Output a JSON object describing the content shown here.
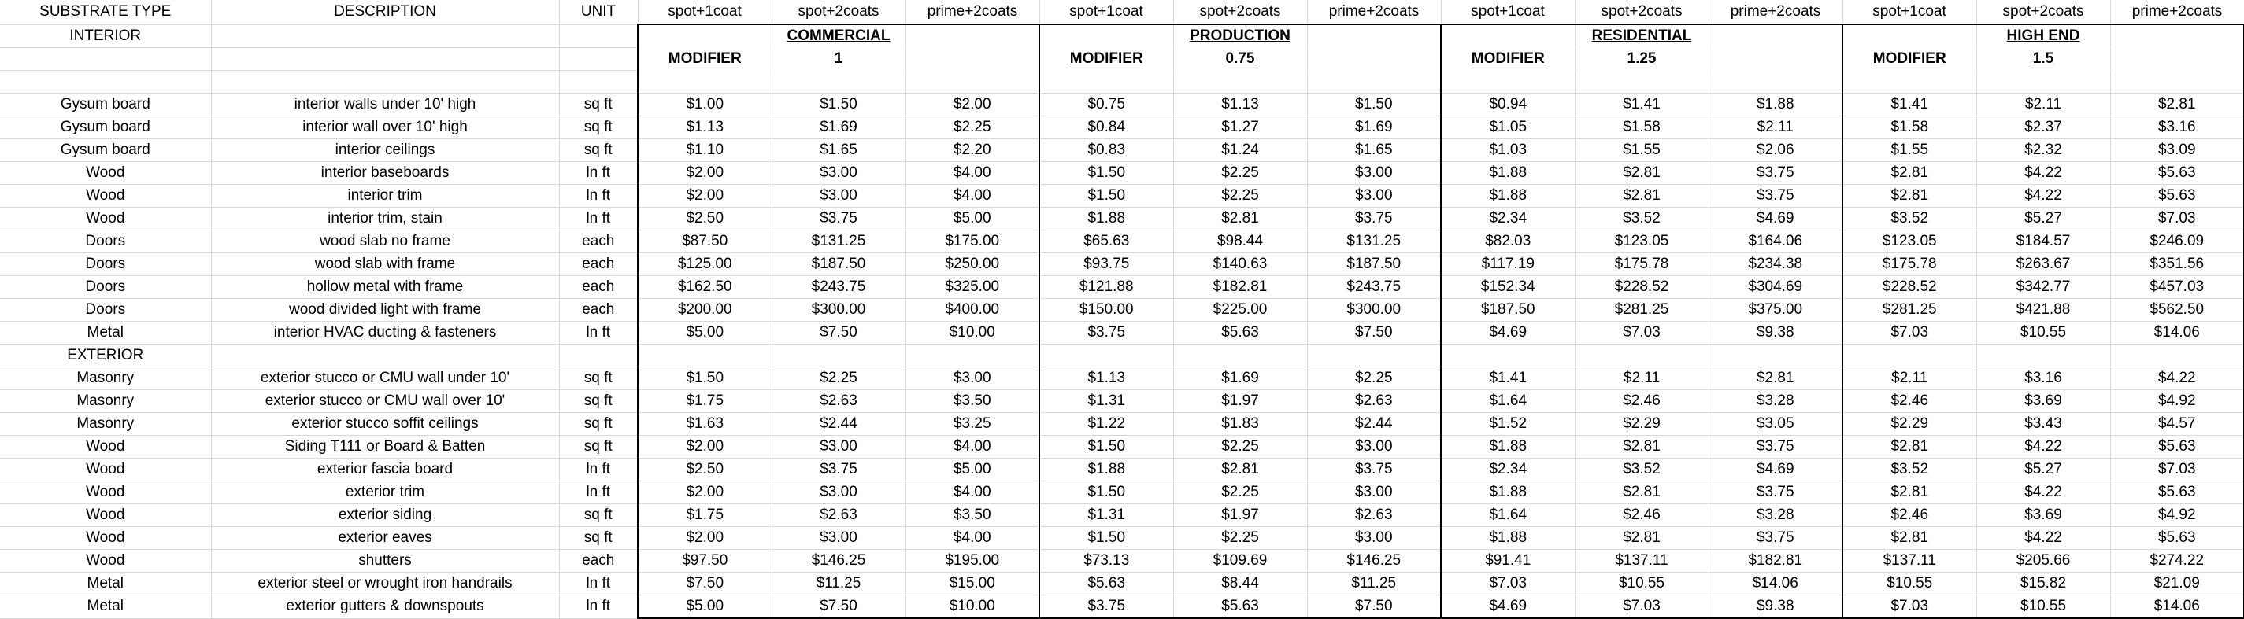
{
  "columns": [
    "SUBSTRATE TYPE",
    "DESCRIPTION",
    "UNIT",
    "spot+1coat",
    "spot+2coats",
    "prime+2coats",
    "spot+1coat",
    "spot+2coats",
    "prime+2coats",
    "spot+1coat",
    "spot+2coats",
    "prime+2coats",
    "spot+1coat",
    "spot+2coats",
    "prime+2coats"
  ],
  "groups": [
    {
      "name": "COMMERCIAL",
      "modifier_label": "MODIFIER",
      "modifier_value": "1"
    },
    {
      "name": "PRODUCTION",
      "modifier_label": "MODIFIER",
      "modifier_value": "0.75"
    },
    {
      "name": "RESIDENTIAL",
      "modifier_label": "MODIFIER",
      "modifier_value": "1.25"
    },
    {
      "name": "HIGH END",
      "modifier_label": "MODIFIER",
      "modifier_value": "1.5"
    }
  ],
  "sections": {
    "interior": "INTERIOR",
    "exterior": "EXTERIOR"
  },
  "interior_rows": [
    {
      "substrate": "Gysum board",
      "description": "interior walls under 10' high",
      "unit": "sq ft",
      "prices": [
        "$1.00",
        "$1.50",
        "$2.00",
        "$0.75",
        "$1.13",
        "$1.50",
        "$0.94",
        "$1.41",
        "$1.88",
        "$1.41",
        "$2.11",
        "$2.81"
      ]
    },
    {
      "substrate": "Gysum board",
      "description": "interior wall over 10' high",
      "unit": "sq ft",
      "prices": [
        "$1.13",
        "$1.69",
        "$2.25",
        "$0.84",
        "$1.27",
        "$1.69",
        "$1.05",
        "$1.58",
        "$2.11",
        "$1.58",
        "$2.37",
        "$3.16"
      ]
    },
    {
      "substrate": "Gysum board",
      "description": "interior ceilings",
      "unit": "sq ft",
      "prices": [
        "$1.10",
        "$1.65",
        "$2.20",
        "$0.83",
        "$1.24",
        "$1.65",
        "$1.03",
        "$1.55",
        "$2.06",
        "$1.55",
        "$2.32",
        "$3.09"
      ]
    },
    {
      "substrate": "Wood",
      "description": "interior baseboards",
      "unit": "ln ft",
      "prices": [
        "$2.00",
        "$3.00",
        "$4.00",
        "$1.50",
        "$2.25",
        "$3.00",
        "$1.88",
        "$2.81",
        "$3.75",
        "$2.81",
        "$4.22",
        "$5.63"
      ]
    },
    {
      "substrate": "Wood",
      "description": "interior trim",
      "unit": "ln ft",
      "prices": [
        "$2.00",
        "$3.00",
        "$4.00",
        "$1.50",
        "$2.25",
        "$3.00",
        "$1.88",
        "$2.81",
        "$3.75",
        "$2.81",
        "$4.22",
        "$5.63"
      ]
    },
    {
      "substrate": "Wood",
      "description": "interior trim, stain",
      "unit": "ln ft",
      "prices": [
        "$2.50",
        "$3.75",
        "$5.00",
        "$1.88",
        "$2.81",
        "$3.75",
        "$2.34",
        "$3.52",
        "$4.69",
        "$3.52",
        "$5.27",
        "$7.03"
      ]
    },
    {
      "substrate": "Doors",
      "description": "wood slab no frame",
      "unit": "each",
      "prices": [
        "$87.50",
        "$131.25",
        "$175.00",
        "$65.63",
        "$98.44",
        "$131.25",
        "$82.03",
        "$123.05",
        "$164.06",
        "$123.05",
        "$184.57",
        "$246.09"
      ]
    },
    {
      "substrate": "Doors",
      "description": "wood slab with frame",
      "unit": "each",
      "prices": [
        "$125.00",
        "$187.50",
        "$250.00",
        "$93.75",
        "$140.63",
        "$187.50",
        "$117.19",
        "$175.78",
        "$234.38",
        "$175.78",
        "$263.67",
        "$351.56"
      ]
    },
    {
      "substrate": "Doors",
      "description": "hollow metal with frame",
      "unit": "each",
      "prices": [
        "$162.50",
        "$243.75",
        "$325.00",
        "$121.88",
        "$182.81",
        "$243.75",
        "$152.34",
        "$228.52",
        "$304.69",
        "$228.52",
        "$342.77",
        "$457.03"
      ]
    },
    {
      "substrate": "Doors",
      "description": "wood divided light with frame",
      "unit": "each",
      "prices": [
        "$200.00",
        "$300.00",
        "$400.00",
        "$150.00",
        "$225.00",
        "$300.00",
        "$187.50",
        "$281.25",
        "$375.00",
        "$281.25",
        "$421.88",
        "$562.50"
      ]
    },
    {
      "substrate": "Metal",
      "description": "interior HVAC ducting & fasteners",
      "unit": "ln ft",
      "prices": [
        "$5.00",
        "$7.50",
        "$10.00",
        "$3.75",
        "$5.63",
        "$7.50",
        "$4.69",
        "$7.03",
        "$9.38",
        "$7.03",
        "$10.55",
        "$14.06"
      ]
    }
  ],
  "exterior_rows": [
    {
      "substrate": "Masonry",
      "description": "exterior stucco or CMU wall under 10'",
      "unit": "sq ft",
      "prices": [
        "$1.50",
        "$2.25",
        "$3.00",
        "$1.13",
        "$1.69",
        "$2.25",
        "$1.41",
        "$2.11",
        "$2.81",
        "$2.11",
        "$3.16",
        "$4.22"
      ]
    },
    {
      "substrate": "Masonry",
      "description": "exterior stucco or CMU wall over 10'",
      "unit": "sq ft",
      "prices": [
        "$1.75",
        "$2.63",
        "$3.50",
        "$1.31",
        "$1.97",
        "$2.63",
        "$1.64",
        "$2.46",
        "$3.28",
        "$2.46",
        "$3.69",
        "$4.92"
      ]
    },
    {
      "substrate": "Masonry",
      "description": "exterior stucco soffit ceilings",
      "unit": "sq ft",
      "prices": [
        "$1.63",
        "$2.44",
        "$3.25",
        "$1.22",
        "$1.83",
        "$2.44",
        "$1.52",
        "$2.29",
        "$3.05",
        "$2.29",
        "$3.43",
        "$4.57"
      ]
    },
    {
      "substrate": "Wood",
      "description": "Siding T111 or Board & Batten",
      "unit": "sq ft",
      "prices": [
        "$2.00",
        "$3.00",
        "$4.00",
        "$1.50",
        "$2.25",
        "$3.00",
        "$1.88",
        "$2.81",
        "$3.75",
        "$2.81",
        "$4.22",
        "$5.63"
      ]
    },
    {
      "substrate": "Wood",
      "description": "exterior fascia board",
      "unit": "ln ft",
      "prices": [
        "$2.50",
        "$3.75",
        "$5.00",
        "$1.88",
        "$2.81",
        "$3.75",
        "$2.34",
        "$3.52",
        "$4.69",
        "$3.52",
        "$5.27",
        "$7.03"
      ]
    },
    {
      "substrate": "Wood",
      "description": "exterior trim",
      "unit": "ln ft",
      "prices": [
        "$2.00",
        "$3.00",
        "$4.00",
        "$1.50",
        "$2.25",
        "$3.00",
        "$1.88",
        "$2.81",
        "$3.75",
        "$2.81",
        "$4.22",
        "$5.63"
      ]
    },
    {
      "substrate": "Wood",
      "description": "exterior siding",
      "unit": "sq ft",
      "prices": [
        "$1.75",
        "$2.63",
        "$3.50",
        "$1.31",
        "$1.97",
        "$2.63",
        "$1.64",
        "$2.46",
        "$3.28",
        "$2.46",
        "$3.69",
        "$4.92"
      ]
    },
    {
      "substrate": "Wood",
      "description": "exterior eaves",
      "unit": "sq ft",
      "prices": [
        "$2.00",
        "$3.00",
        "$4.00",
        "$1.50",
        "$2.25",
        "$3.00",
        "$1.88",
        "$2.81",
        "$3.75",
        "$2.81",
        "$4.22",
        "$5.63"
      ]
    },
    {
      "substrate": "Wood",
      "description": "shutters",
      "unit": "each",
      "prices": [
        "$97.50",
        "$146.25",
        "$195.00",
        "$73.13",
        "$109.69",
        "$146.25",
        "$91.41",
        "$137.11",
        "$182.81",
        "$137.11",
        "$205.66",
        "$274.22"
      ]
    },
    {
      "substrate": "Metal",
      "description": "exterior steel or wrought iron handrails",
      "unit": "ln ft",
      "prices": [
        "$7.50",
        "$11.25",
        "$15.00",
        "$5.63",
        "$8.44",
        "$11.25",
        "$7.03",
        "$10.55",
        "$14.06",
        "$10.55",
        "$15.82",
        "$21.09"
      ]
    },
    {
      "substrate": "Metal",
      "description": "exterior gutters & downspouts",
      "unit": "ln ft",
      "prices": [
        "$5.00",
        "$7.50",
        "$10.00",
        "$3.75",
        "$5.63",
        "$7.50",
        "$4.69",
        "$7.03",
        "$9.38",
        "$7.03",
        "$10.55",
        "$14.06"
      ]
    }
  ]
}
